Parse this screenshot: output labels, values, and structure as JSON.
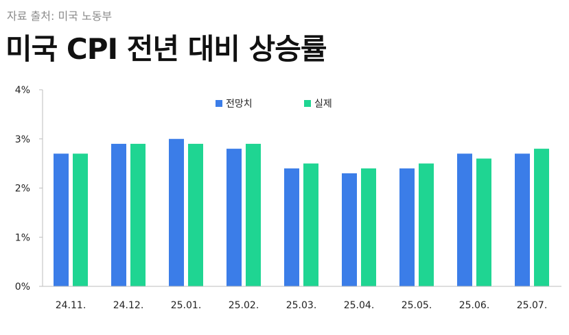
{
  "header": {
    "source": "자료 출처: 미국 노동부",
    "title": "미국 CPI 전년 대비 상승률"
  },
  "colors": {
    "forecast": "#3b7de8",
    "actual": "#1fd592",
    "axis": "#bdbdbd"
  },
  "chart_data": {
    "type": "bar",
    "title": "미국 CPI 전년 대비 상승률",
    "xlabel": "",
    "ylabel": "",
    "categories": [
      "24.11.",
      "24.12.",
      "25.01.",
      "25.02.",
      "25.03.",
      "25.04.",
      "25.05.",
      "25.06.",
      "25.07."
    ],
    "series": [
      {
        "name": "전망치",
        "values": [
          2.7,
          2.9,
          3.0,
          2.8,
          2.4,
          2.3,
          2.4,
          2.7,
          2.7
        ]
      },
      {
        "name": "실제",
        "values": [
          2.7,
          2.9,
          2.9,
          2.9,
          2.5,
          2.4,
          2.5,
          2.6,
          2.8
        ]
      }
    ],
    "ylim": [
      0,
      4
    ],
    "yticks": [
      "0%",
      "1%",
      "2%",
      "3%",
      "4%"
    ],
    "grid": false,
    "legend": "top-center"
  }
}
